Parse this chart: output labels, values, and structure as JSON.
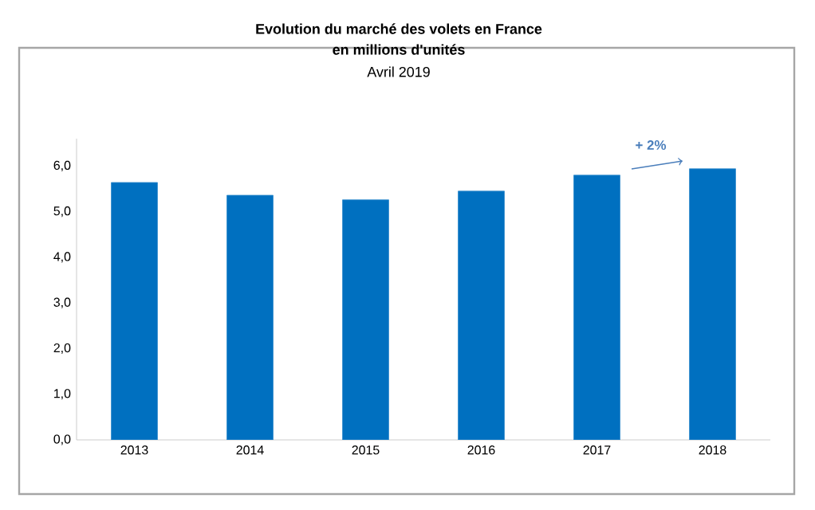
{
  "chart_data": {
    "type": "bar",
    "title": "Evolution du marché des volets en France",
    "subtitle": "en millions d'unités",
    "annotations": [
      "Avril 2019",
      "+ 2%"
    ],
    "categories": [
      "2013",
      "2014",
      "2015",
      "2016",
      "2017",
      "2018"
    ],
    "values": [
      5.64,
      5.36,
      5.26,
      5.45,
      5.8,
      5.94
    ],
    "color": "#0070c0",
    "ylim": [
      0,
      6.6
    ],
    "yticks": [
      {
        "value": 0,
        "label": "0,0"
      },
      {
        "value": 1,
        "label": "1,0"
      },
      {
        "value": 2,
        "label": "2,0"
      },
      {
        "value": 3,
        "label": "3,0"
      },
      {
        "value": 4,
        "label": "4,0"
      },
      {
        "value": 5,
        "label": "5,0"
      },
      {
        "value": 6,
        "label": "6,0"
      }
    ],
    "grid": false
  }
}
